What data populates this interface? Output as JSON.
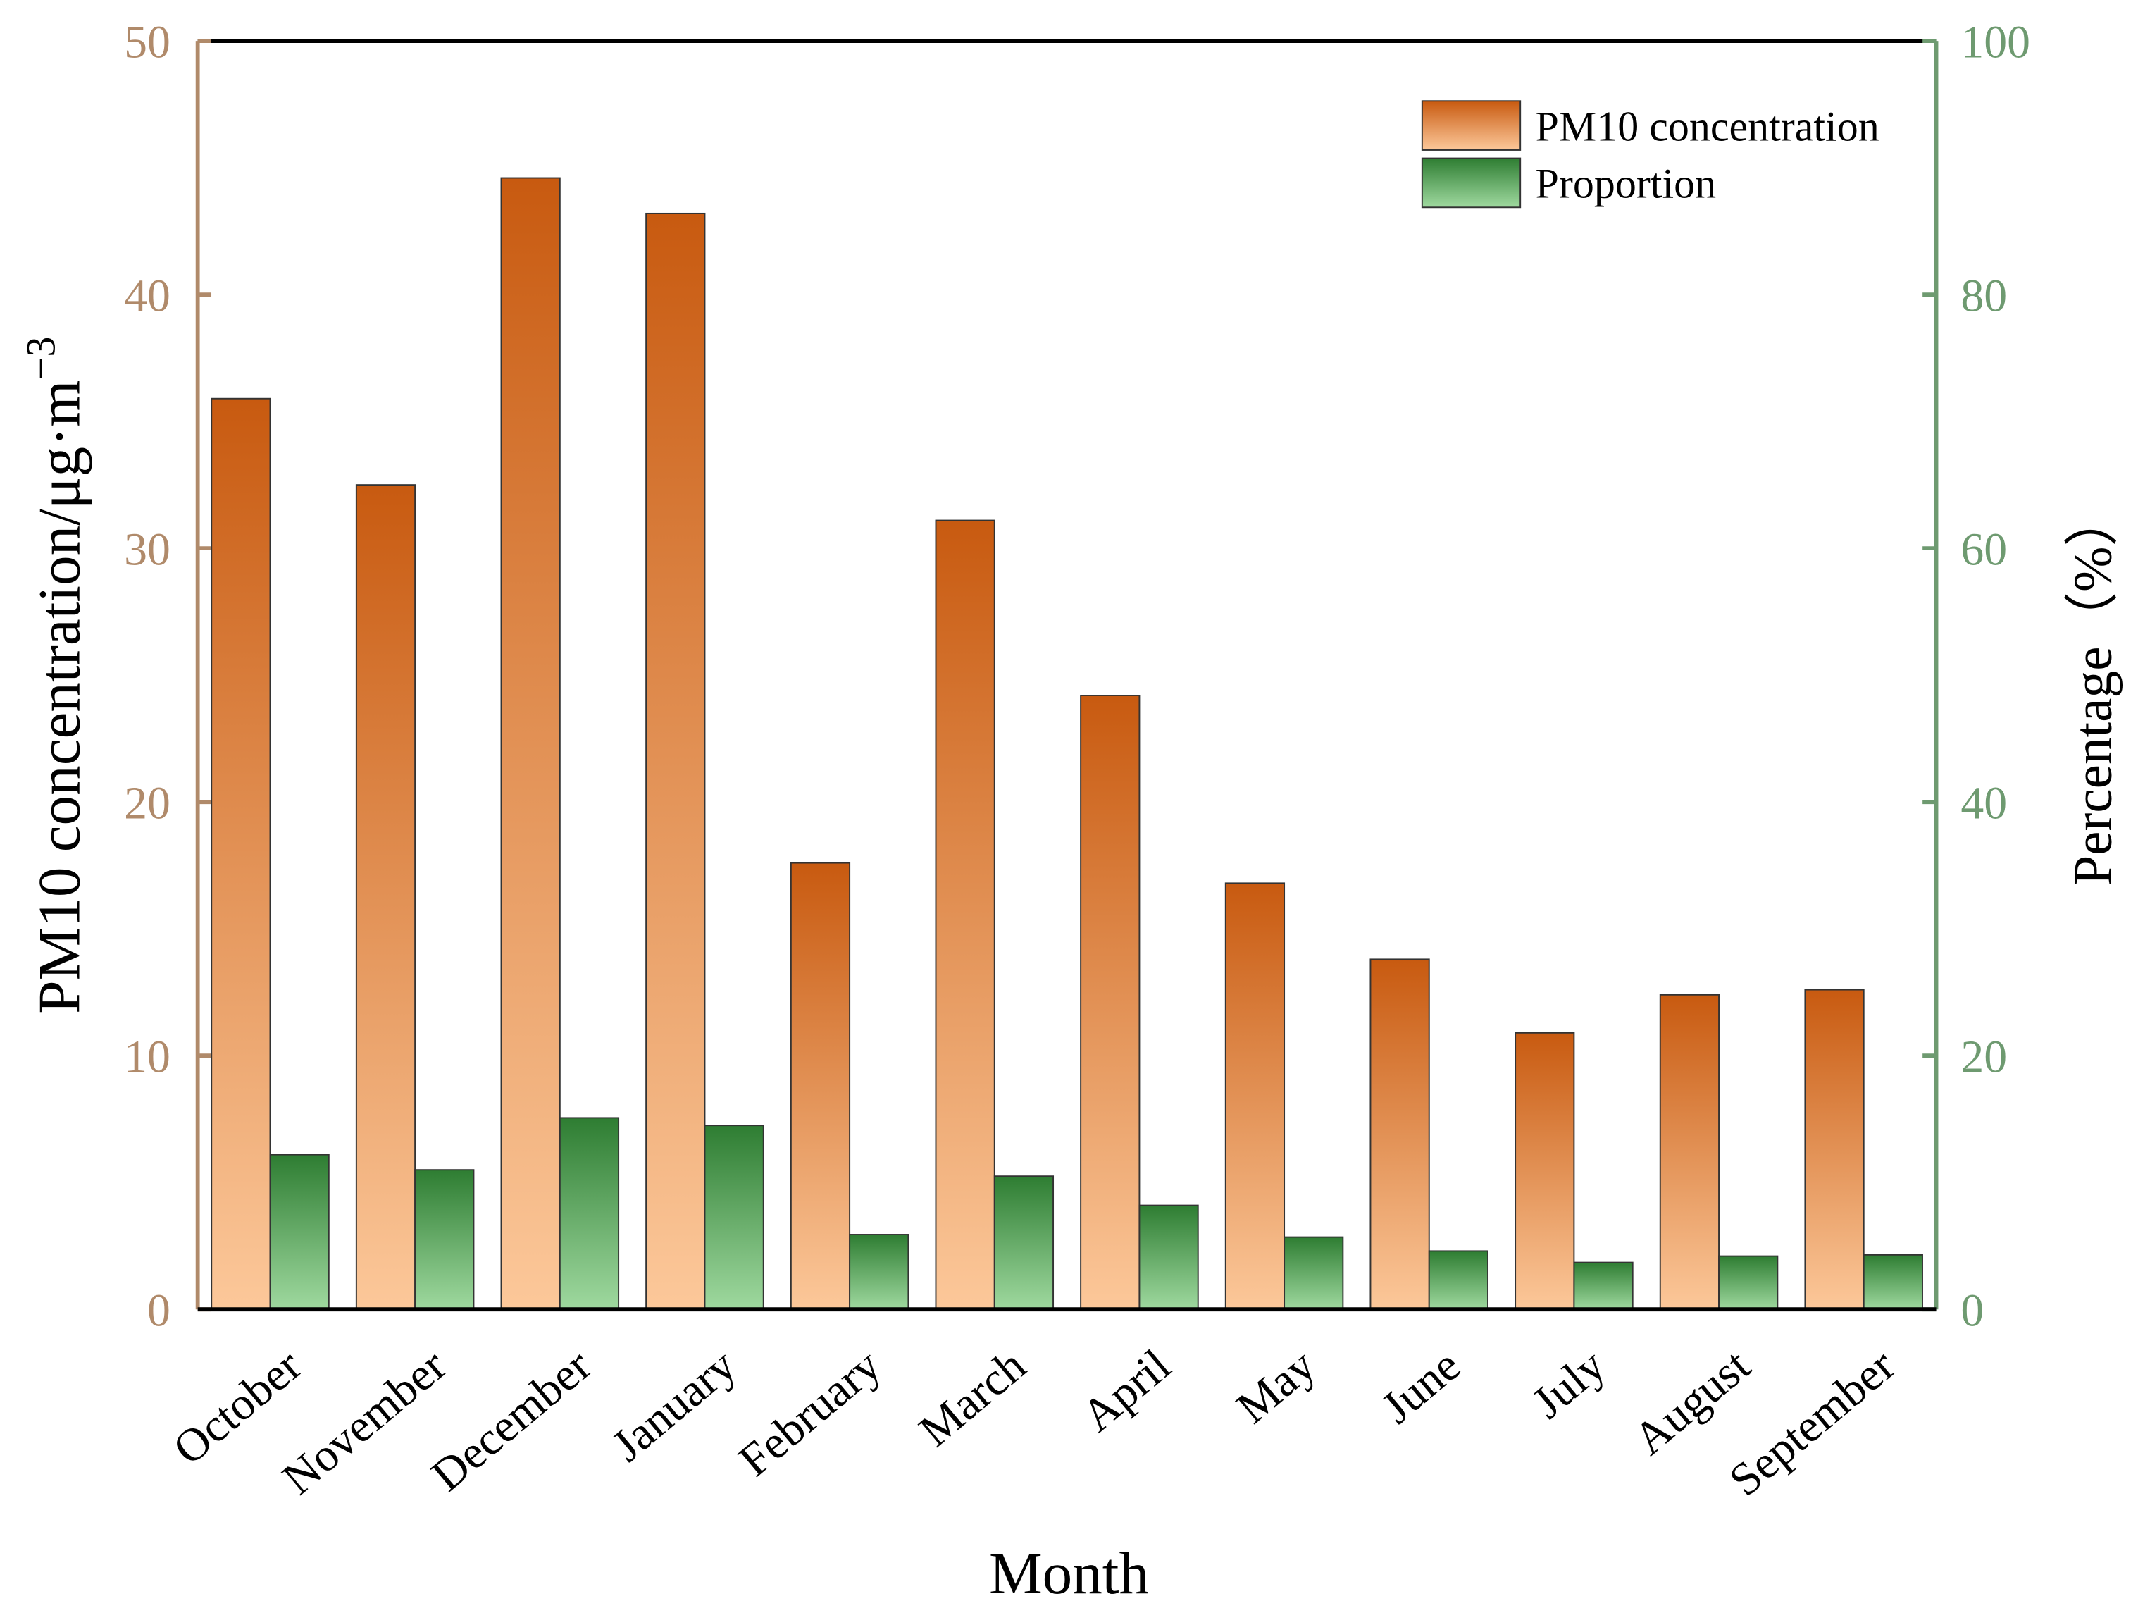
{
  "chart_data": {
    "type": "bar",
    "categories": [
      "October",
      "November",
      "December",
      "January",
      "February",
      "March",
      "April",
      "May",
      "June",
      "July",
      "August",
      "September"
    ],
    "series": [
      {
        "name": "PM10 concentration",
        "color": "#c85a10",
        "values": [
          35.9,
          32.5,
          44.6,
          43.2,
          17.6,
          31.1,
          24.2,
          16.8,
          13.8,
          10.9,
          12.4,
          12.6
        ]
      },
      {
        "name": "Proportion",
        "color": "#2e7d32",
        "axis": "y2",
        "values": [
          12.2,
          11.0,
          15.1,
          14.5,
          5.9,
          10.5,
          8.2,
          5.7,
          4.6,
          3.7,
          4.2,
          4.3
        ]
      }
    ],
    "x_label": "Month",
    "y_label": "PM10 concentration/μg·m",
    "y_label_sup": "−3",
    "y2_label": "Percentage（%）",
    "ylim": [
      0,
      50
    ],
    "yticks": [
      0,
      10,
      20,
      30,
      40,
      50
    ],
    "y2lim": [
      0,
      100
    ],
    "y2ticks": [
      0,
      20,
      40,
      60,
      80,
      100
    ],
    "y_axis_color": "#b08a6a",
    "y2_axis_color": "#6e9a70",
    "legend": "top-right"
  }
}
